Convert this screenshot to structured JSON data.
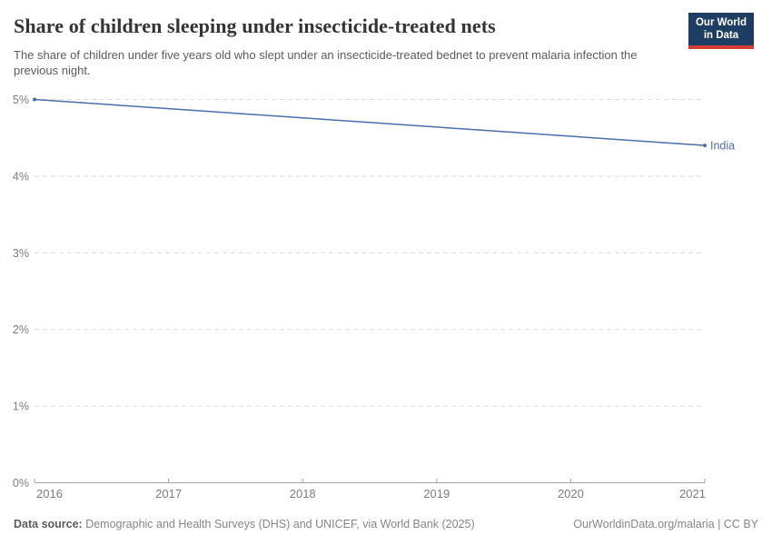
{
  "header": {
    "title": "Share of children sleeping under insecticide-treated nets",
    "subtitle": "The share of children under five years old who slept under an insecticide-treated bednet to prevent malaria infection the previous night.",
    "logo": {
      "line1": "Our World",
      "line2": "in Data"
    }
  },
  "chart_data": {
    "type": "line",
    "title": "Share of children sleeping under insecticide-treated nets",
    "subtitle": "The share of children under five years old who slept under an insecticide-treated bednet to prevent malaria infection the previous night.",
    "x": [
      2016,
      2017,
      2018,
      2019,
      2020,
      2021
    ],
    "series": [
      {
        "name": "India",
        "values": [
          5.0,
          4.88,
          4.76,
          4.64,
          4.52,
          4.4
        ],
        "color": "#4c6ea8",
        "end_label": "India"
      }
    ],
    "xlabel": "",
    "ylabel": "",
    "xlim": [
      2016,
      2021
    ],
    "ylim": [
      0,
      5
    ],
    "xticks": [
      2016,
      2017,
      2018,
      2019,
      2020,
      2021
    ],
    "yticks": [
      0,
      1,
      2,
      3,
      4,
      5
    ],
    "ytick_suffix": "%",
    "grid": "horizontal-dashed",
    "legend_position": "end-of-line-label"
  },
  "footer": {
    "datasource_label": "Data source:",
    "datasource_text": " Demographic and Health Surveys (DHS) and UNICEF, via World Bank (2025)",
    "attribution": "OurWorldinData.org/malaria | CC BY"
  },
  "colors": {
    "line": "#4c6ea8",
    "grid": "#dcdcdc",
    "axis": "#a3a3a3",
    "tick_label": "#7d7d7d",
    "logo_bg": "#1d3d63",
    "logo_stripe": "#d73c34"
  }
}
